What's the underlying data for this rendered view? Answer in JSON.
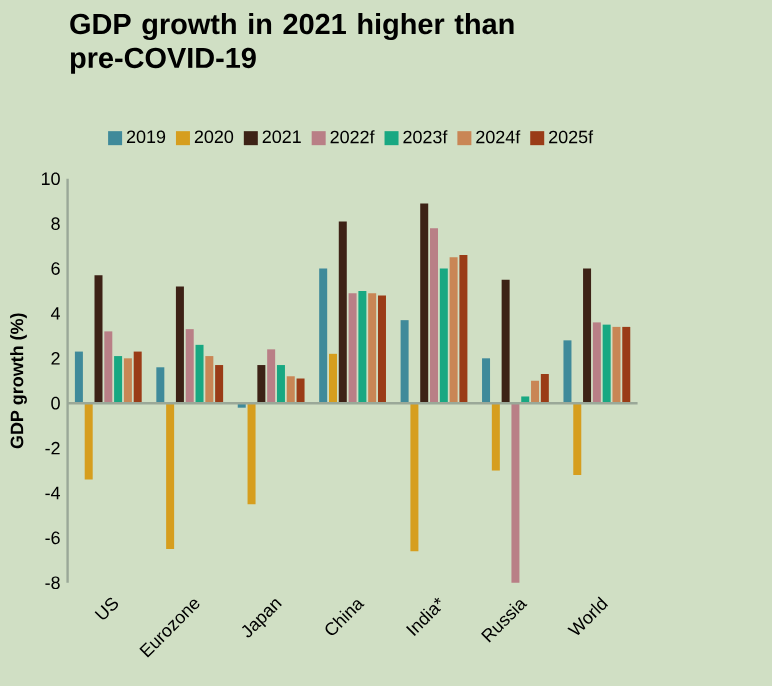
{
  "chart_data": {
    "type": "bar",
    "title": "GDP growth in 2021 higher than pre-COVID-19",
    "ylabel": "GDP growth (%)",
    "categories": [
      "US",
      "Eurozone",
      "Japan",
      "China",
      "India*",
      "Russia",
      "World"
    ],
    "series": [
      {
        "name": "2019",
        "color": "#3f8a9a",
        "values": [
          2.3,
          1.6,
          -0.2,
          6.0,
          3.7,
          2.0,
          2.8
        ]
      },
      {
        "name": "2020",
        "color": "#d69e1e",
        "values": [
          -3.4,
          -6.5,
          -4.5,
          2.2,
          -6.6,
          -3.0,
          -3.2
        ]
      },
      {
        "name": "2021",
        "color": "#3d2216",
        "values": [
          5.7,
          5.2,
          1.7,
          8.1,
          8.9,
          5.5,
          6.0
        ]
      },
      {
        "name": "2022f",
        "color": "#b97f86",
        "values": [
          3.2,
          3.3,
          2.4,
          4.9,
          7.8,
          -8.0,
          3.6
        ]
      },
      {
        "name": "2023f",
        "color": "#18a882",
        "values": [
          2.1,
          2.6,
          1.7,
          5.0,
          6.0,
          0.3,
          3.5
        ]
      },
      {
        "name": "2024f",
        "color": "#c98655",
        "values": [
          2.0,
          2.1,
          1.2,
          4.9,
          6.5,
          1.0,
          3.4
        ]
      },
      {
        "name": "2025f",
        "color": "#9a3c17",
        "values": [
          2.3,
          1.7,
          1.1,
          4.8,
          6.6,
          1.3,
          3.4
        ]
      }
    ],
    "ylim": [
      -8,
      10
    ],
    "yticks": [
      -8,
      -6,
      -4,
      -2,
      0,
      2,
      4,
      6,
      8,
      10
    ],
    "legend": "top"
  }
}
